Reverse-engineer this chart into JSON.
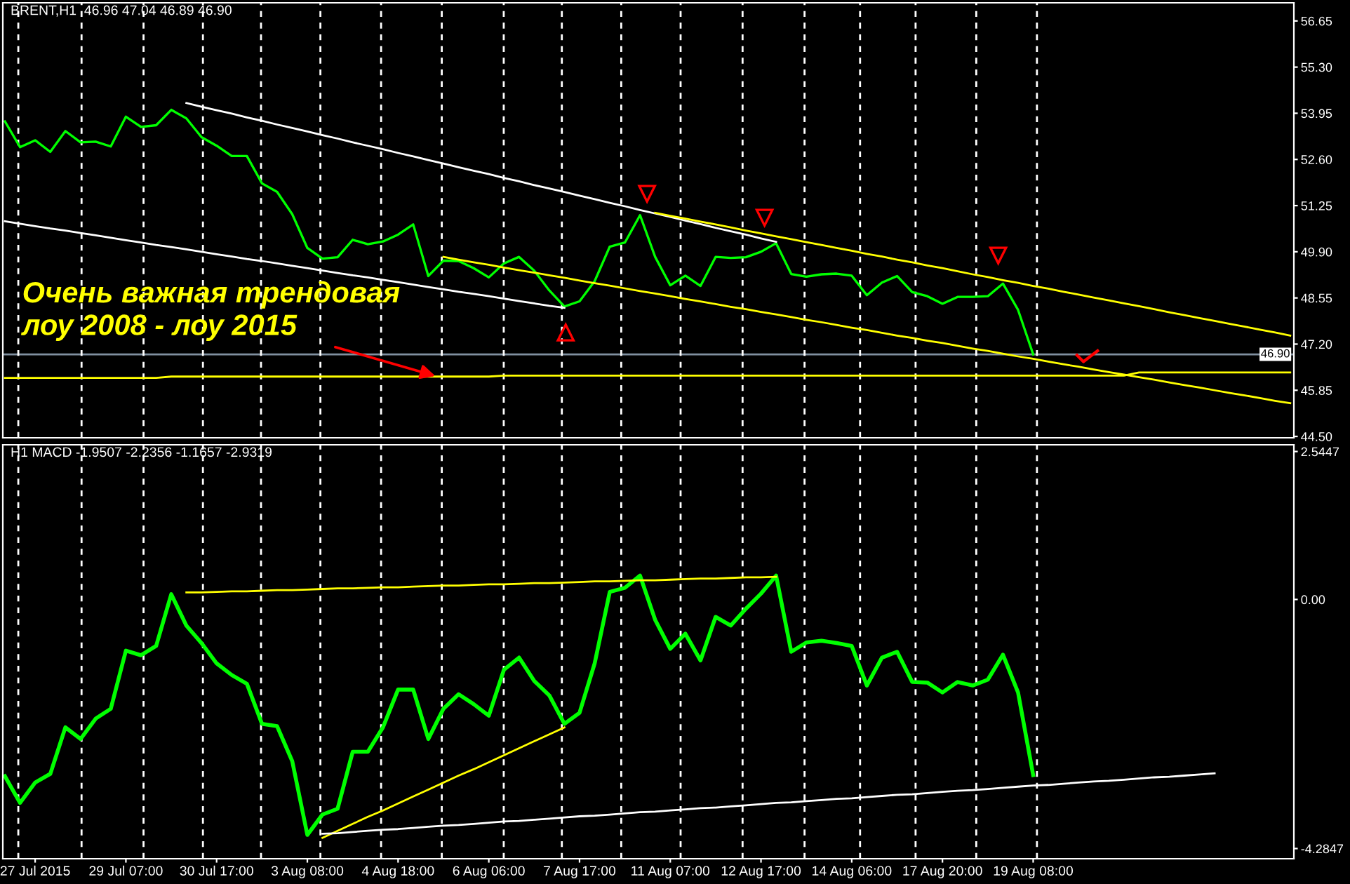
{
  "chart_data": [
    {
      "type": "line",
      "title": "BRENT,H1  46.96 47.04 46.89 46.90",
      "ylim": [
        44.46,
        57.18
      ],
      "categories": [
        null,
        null,
        null,
        null,
        null,
        null,
        null,
        null,
        null,
        null,
        null,
        null,
        null,
        null,
        null,
        null,
        null,
        null,
        null,
        null,
        null,
        null,
        null,
        null,
        null,
        null,
        null,
        null,
        null,
        null,
        null,
        null,
        null,
        null,
        null,
        null,
        null,
        null,
        null,
        null,
        null,
        null,
        null,
        null,
        null,
        null,
        null,
        null,
        null,
        null,
        null,
        null,
        null,
        null,
        null,
        null,
        null,
        null,
        null,
        null,
        null,
        null,
        null,
        null,
        null,
        null,
        null,
        null,
        null,
        null,
        null,
        null,
        null,
        null,
        null,
        null,
        null,
        null,
        null,
        null,
        null,
        null,
        null,
        null,
        null,
        null
      ],
      "yticks": [
        56.65,
        {
          "value": 55.3,
          "label": "55.30"
        },
        53.95,
        {
          "value": 52.6,
          "label": "52.60"
        },
        51.25,
        {
          "value": 49.9,
          "label": "49.90"
        },
        48.55,
        {
          "value": 47.2,
          "label": "47.20"
        },
        45.85,
        {
          "value": 44.5,
          "label": "44.50"
        }
      ],
      "tick_labels": "y",
      "grid": "x",
      "series": [
        {
          "color": "#00ff00",
          "values": [
            53.71,
            52.96,
            53.16,
            52.82,
            53.43,
            53.1,
            53.12,
            52.98,
            53.85,
            53.55,
            53.6,
            54.05,
            53.8,
            53.25,
            53.0,
            52.7,
            52.7,
            51.9,
            51.65,
            51.0,
            50.01,
            49.7,
            49.74,
            50.25,
            50.12,
            50.2,
            50.4,
            50.7,
            49.19,
            49.64,
            49.63,
            49.42,
            49.15,
            49.56,
            49.75,
            49.35,
            48.77,
            48.3,
            48.45,
            49.04,
            50.05,
            50.17,
            50.97,
            49.75,
            48.92,
            49.2,
            48.9,
            49.75,
            49.72,
            49.74,
            49.9,
            50.15,
            49.25,
            49.17,
            49.24,
            49.26,
            49.2,
            48.63,
            49.0,
            49.19,
            48.72,
            48.6,
            48.38,
            48.58,
            48.58,
            48.6,
            48.97,
            48.2,
            46.9,
            null,
            null,
            null,
            null,
            null,
            null,
            null,
            null,
            null,
            null,
            null,
            null,
            null,
            null,
            null,
            null,
            null
          ]
        },
        {
          "color": "#ffffff",
          "values": [
            null,
            null,
            null,
            null,
            null,
            null,
            null,
            null,
            null,
            null,
            null,
            null,
            54.25,
            54.14,
            54.04,
            53.94,
            53.83,
            53.73,
            53.62,
            53.52,
            53.42,
            53.31,
            53.21,
            53.1,
            53.0,
            52.9,
            52.79,
            52.69,
            52.58,
            52.48,
            52.37,
            52.27,
            52.17,
            52.06,
            51.96,
            51.85,
            51.75,
            51.65,
            51.54,
            51.44,
            51.33,
            51.23,
            51.12,
            51.02,
            50.92,
            50.81,
            50.71,
            50.6,
            50.5,
            50.4,
            50.29,
            50.19,
            null,
            null,
            null,
            null,
            null,
            null,
            null,
            null,
            null,
            null,
            null,
            null,
            null,
            null,
            null,
            null,
            null,
            null,
            null,
            null,
            null,
            null,
            null,
            null,
            null,
            null,
            null,
            null,
            null,
            null,
            null,
            null,
            null,
            null
          ]
        },
        {
          "color": "#ffffff",
          "values": [
            50.79,
            50.72,
            50.65,
            50.58,
            50.52,
            50.45,
            50.38,
            50.31,
            50.24,
            50.17,
            50.1,
            50.04,
            49.97,
            49.9,
            49.83,
            49.76,
            49.69,
            49.63,
            49.56,
            49.49,
            49.42,
            49.35,
            49.28,
            49.21,
            49.15,
            49.08,
            49.01,
            48.94,
            48.87,
            48.8,
            48.73,
            48.67,
            48.6,
            48.53,
            48.46,
            48.39,
            48.32,
            48.26,
            null,
            null,
            null,
            null,
            null,
            null,
            null,
            null,
            null,
            null,
            null,
            null,
            null,
            null,
            null,
            null,
            null,
            null,
            null,
            null,
            null,
            null,
            null,
            null,
            null,
            null,
            null,
            null,
            null,
            null,
            null,
            null,
            null,
            null,
            null,
            null,
            null,
            null,
            null,
            null,
            null,
            null,
            null,
            null,
            null,
            null,
            null,
            null
          ]
        },
        {
          "color": "#ffff00",
          "values": [
            null,
            null,
            null,
            null,
            null,
            null,
            null,
            null,
            null,
            null,
            null,
            null,
            null,
            null,
            null,
            null,
            null,
            null,
            null,
            null,
            null,
            null,
            null,
            null,
            null,
            null,
            null,
            null,
            null,
            null,
            null,
            null,
            null,
            null,
            null,
            null,
            null,
            null,
            null,
            null,
            null,
            null,
            null,
            51.04,
            50.95,
            50.87,
            50.78,
            50.7,
            50.61,
            50.52,
            50.44,
            50.35,
            50.27,
            50.18,
            50.1,
            50.01,
            49.93,
            49.84,
            49.76,
            49.67,
            49.59,
            49.5,
            49.42,
            49.33,
            49.24,
            49.16,
            49.07,
            48.99,
            48.9,
            48.82,
            48.73,
            48.65,
            48.56,
            48.48,
            48.39,
            48.31,
            48.22,
            48.13,
            48.05,
            47.96,
            47.88,
            47.79,
            47.71,
            47.62,
            47.54,
            47.45
          ]
        },
        {
          "color": "#ffff00",
          "values": [
            null,
            null,
            null,
            null,
            null,
            null,
            null,
            null,
            null,
            null,
            null,
            null,
            null,
            null,
            null,
            null,
            null,
            null,
            null,
            null,
            null,
            null,
            null,
            null,
            null,
            null,
            null,
            null,
            null,
            49.75,
            49.67,
            49.59,
            49.52,
            49.44,
            49.36,
            49.29,
            49.21,
            49.14,
            49.06,
            48.98,
            48.91,
            48.83,
            48.75,
            48.68,
            48.6,
            48.52,
            48.45,
            48.37,
            48.29,
            48.22,
            48.14,
            48.07,
            47.99,
            47.91,
            47.84,
            47.76,
            47.68,
            47.61,
            47.53,
            47.45,
            47.38,
            47.3,
            47.23,
            47.15,
            47.07,
            47.0,
            46.92,
            46.84,
            46.77,
            46.69,
            46.61,
            46.54,
            46.46,
            46.38,
            46.31,
            46.23,
            46.16,
            46.08,
            46.0,
            45.93,
            45.85,
            45.77,
            45.7,
            45.62,
            45.54,
            45.47
          ]
        },
        {
          "color": "#ffff00",
          "values": [
            46.21,
            46.21,
            46.21,
            46.21,
            46.21,
            46.21,
            46.21,
            46.21,
            46.21,
            46.21,
            46.21,
            46.25,
            46.25,
            46.25,
            46.25,
            46.25,
            46.25,
            46.25,
            46.25,
            46.25,
            46.25,
            46.25,
            46.25,
            46.25,
            46.25,
            46.25,
            46.25,
            46.25,
            46.25,
            46.25,
            46.25,
            46.25,
            46.25,
            46.28,
            46.28,
            46.28,
            46.28,
            46.28,
            46.28,
            46.28,
            46.28,
            46.28,
            46.28,
            46.28,
            46.28,
            46.28,
            46.28,
            46.28,
            46.28,
            46.28,
            46.28,
            46.28,
            46.28,
            46.28,
            46.28,
            46.28,
            46.28,
            46.28,
            46.28,
            46.28,
            46.28,
            46.28,
            46.28,
            46.28,
            46.28,
            46.28,
            46.28,
            46.28,
            46.28,
            46.28,
            46.28,
            46.28,
            46.28,
            46.28,
            46.28,
            46.37,
            46.37,
            46.37,
            46.37,
            46.37,
            46.37,
            46.37,
            46.37,
            46.37,
            46.37,
            46.37
          ]
        }
      ],
      "ref_lines": [
        {
          "axis": "y",
          "value": 46.9,
          "label": "46.90",
          "color": "#8090a0",
          "line_style": "solid"
        }
      ],
      "annotations": [
        "Очень важная трендовая\nлоу 2008 - лоу 2015"
      ]
    },
    {
      "type": "line",
      "title": "H1 MACD -1.9507 -2.2356 -1.1657 -2.9319",
      "ylim": [
        -4.46,
        2.66
      ],
      "yticks": [
        2.5447,
        {
          "value": 0,
          "label": "0.00"
        },
        -4.2847
      ],
      "categories": [
        null,
        null,
        "27 Jul 2015",
        null,
        null,
        null,
        null,
        null,
        "29 Jul 07:00",
        null,
        null,
        null,
        null,
        null,
        "30 Jul 17:00",
        null,
        null,
        null,
        null,
        null,
        "3 Aug 08:00",
        null,
        null,
        null,
        null,
        null,
        "4 Aug 18:00",
        null,
        null,
        null,
        null,
        null,
        "6 Aug 06:00",
        null,
        null,
        null,
        null,
        null,
        "7 Aug 17:00",
        null,
        null,
        null,
        null,
        null,
        "11 Aug 07:00",
        null,
        null,
        null,
        null,
        null,
        "12 Aug 17:00",
        null,
        null,
        null,
        null,
        null,
        "14 Aug 06:00",
        null,
        null,
        null,
        null,
        null,
        "17 Aug 20:00",
        null,
        null,
        null,
        null,
        null,
        "19 Aug 08:00",
        null,
        null,
        null,
        null,
        null,
        null,
        null,
        null,
        null,
        null,
        null,
        null,
        null,
        null,
        null,
        null,
        null
      ],
      "series": [
        {
          "color": "#00ff00",
          "values": [
            -3.04,
            -3.5,
            -3.15,
            -3.0,
            -2.2,
            -2.4,
            -2.05,
            -1.88,
            -0.88,
            -0.96,
            -0.8,
            0.09,
            -0.45,
            -0.75,
            -1.1,
            -1.3,
            -1.45,
            -2.14,
            -2.18,
            -2.78,
            -4.05,
            -3.7,
            -3.6,
            -2.62,
            -2.62,
            -2.2,
            -1.55,
            -1.55,
            -2.4,
            -1.88,
            -1.63,
            -1.8,
            -2.0,
            -1.21,
            -1.0,
            -1.4,
            -1.65,
            -2.14,
            -1.95,
            -1.1,
            0.13,
            0.2,
            0.41,
            -0.35,
            -0.85,
            -0.59,
            -1.05,
            -0.3,
            -0.45,
            -0.16,
            0.1,
            0.41,
            -0.9,
            -0.74,
            -0.71,
            -0.75,
            -0.8,
            -1.48,
            -1.0,
            -0.9,
            -1.42,
            -1.43,
            -1.6,
            -1.42,
            -1.48,
            -1.38,
            -0.95,
            -1.6,
            -3.02,
            null,
            null,
            null,
            null,
            null,
            null,
            null,
            null,
            null,
            null,
            null,
            null,
            null,
            null,
            null,
            null,
            null
          ]
        },
        {
          "color": "#ffff00",
          "values": [
            null,
            null,
            null,
            null,
            null,
            null,
            null,
            null,
            null,
            null,
            null,
            null,
            0.12,
            0.12,
            0.13,
            0.14,
            0.14,
            0.15,
            0.16,
            0.16,
            0.17,
            0.18,
            0.19,
            0.19,
            0.2,
            0.21,
            0.21,
            0.22,
            0.23,
            0.24,
            0.24,
            0.25,
            0.26,
            0.26,
            0.27,
            0.28,
            0.28,
            0.29,
            0.3,
            0.31,
            0.31,
            0.32,
            0.33,
            0.33,
            0.34,
            0.35,
            0.36,
            0.36,
            0.37,
            0.38,
            0.38,
            0.39,
            null,
            null,
            null,
            null,
            null,
            null,
            null,
            null,
            null,
            null,
            null,
            null,
            null,
            null,
            null,
            null,
            null,
            null,
            null,
            null,
            null,
            null,
            null,
            null,
            null,
            null,
            null,
            null,
            null,
            null,
            null,
            null,
            null,
            null
          ]
        },
        {
          "color": "#ffff00",
          "values": [
            null,
            null,
            null,
            null,
            null,
            null,
            null,
            null,
            null,
            null,
            null,
            null,
            null,
            null,
            null,
            null,
            null,
            null,
            null,
            null,
            null,
            -4.1,
            -3.98,
            -3.86,
            -3.74,
            -3.63,
            -3.51,
            -3.39,
            -3.27,
            -3.15,
            -3.03,
            -2.92,
            -2.8,
            -2.68,
            -2.56,
            -2.44,
            -2.32,
            -2.2,
            null,
            null,
            null,
            null,
            null,
            null,
            null,
            null,
            null,
            null,
            null,
            null,
            null,
            null,
            null,
            null,
            null,
            null,
            null,
            null,
            null,
            null,
            null,
            null,
            null,
            null,
            null,
            null,
            null,
            null,
            null,
            null,
            null,
            null,
            null,
            null,
            null,
            null,
            null,
            null,
            null,
            null,
            null,
            null,
            null,
            null,
            null,
            null
          ]
        },
        {
          "color": "#ffffff",
          "values": [
            null,
            null,
            null,
            null,
            null,
            null,
            null,
            null,
            null,
            null,
            null,
            null,
            null,
            null,
            null,
            null,
            null,
            null,
            null,
            null,
            null,
            -4.03,
            -4.02,
            -4.0,
            -3.98,
            -3.96,
            -3.95,
            -3.93,
            -3.91,
            -3.89,
            -3.88,
            -3.86,
            -3.84,
            -3.82,
            -3.81,
            -3.79,
            -3.77,
            -3.75,
            -3.73,
            -3.72,
            -3.7,
            -3.68,
            -3.66,
            -3.65,
            -3.63,
            -3.61,
            -3.59,
            -3.58,
            -3.56,
            -3.54,
            -3.52,
            -3.5,
            -3.49,
            -3.47,
            -3.45,
            -3.43,
            -3.42,
            -3.4,
            -3.38,
            -3.36,
            -3.35,
            -3.33,
            -3.31,
            -3.29,
            -3.28,
            -3.26,
            -3.24,
            -3.22,
            -3.2,
            -3.19,
            -3.17,
            -3.15,
            -3.13,
            -3.12,
            -3.1,
            -3.08,
            -3.06,
            -3.05,
            -3.03,
            -3.01,
            -2.99,
            null,
            null,
            null,
            null,
            null
          ]
        }
      ],
      "grid": "x"
    }
  ]
}
